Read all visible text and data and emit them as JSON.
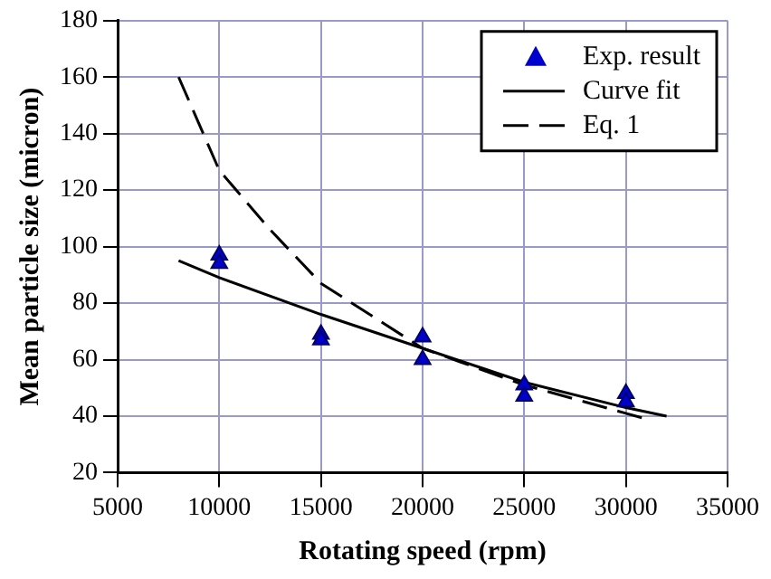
{
  "chart_data": {
    "type": "scatter",
    "xlabel": "Rotating speed (rpm)",
    "ylabel": "Mean particle size (micron)",
    "xlim": [
      5000,
      35000
    ],
    "xticks": [
      5000,
      10000,
      15000,
      20000,
      25000,
      30000,
      35000
    ],
    "ylim": [
      20,
      180
    ],
    "yticks": [
      20,
      40,
      60,
      80,
      100,
      120,
      140,
      160,
      180
    ],
    "grid": true,
    "legend": "top right",
    "series": [
      {
        "name": "Exp. result",
        "type": "scatter",
        "marker": "triangle",
        "color": "#0000cc",
        "x": [
          10000,
          10000,
          15000,
          15000,
          20000,
          20000,
          25000,
          25000,
          30000,
          30000
        ],
        "values": [
          97,
          94,
          69,
          67,
          68,
          60,
          51,
          47,
          48,
          45
        ]
      },
      {
        "name": "Curve fit",
        "type": "line",
        "marker": "none",
        "line_style": "solid",
        "color": "#000000",
        "x": [
          8000,
          10000,
          15000,
          20000,
          25000,
          30000,
          32000
        ],
        "values": [
          95,
          89,
          76,
          64,
          52,
          43,
          40
        ]
      },
      {
        "name": "Eq. 1",
        "type": "line",
        "marker": "none",
        "line_style": "dashed",
        "color": "#000000",
        "x": [
          8000,
          10000,
          12500,
          15000,
          20000,
          25000,
          30000,
          31000
        ],
        "values": [
          160,
          127,
          106,
          87,
          64,
          51,
          41,
          39
        ]
      }
    ]
  }
}
